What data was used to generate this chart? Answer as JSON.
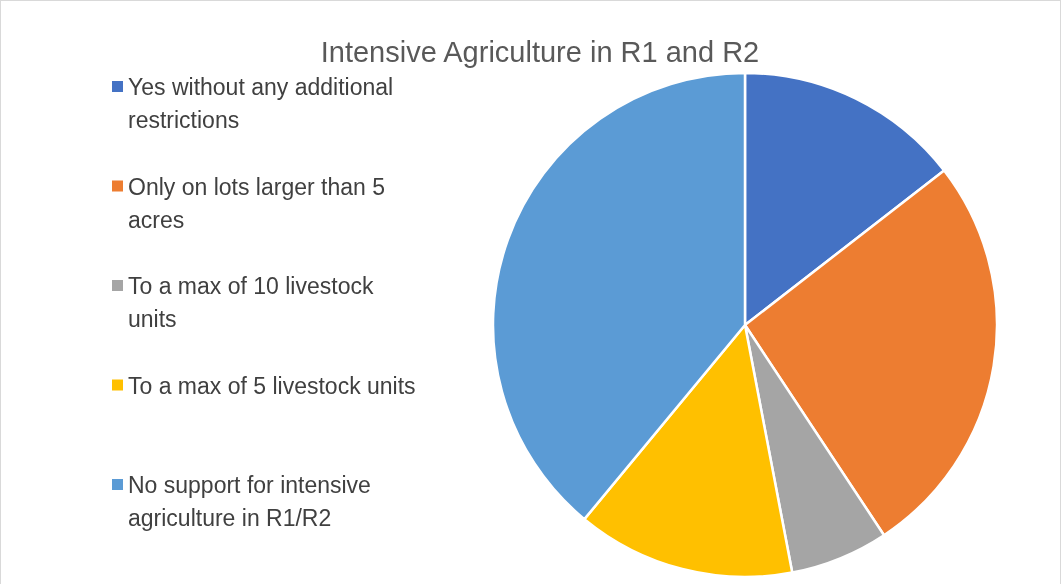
{
  "chart_data": {
    "type": "pie",
    "title": "Intensive Agriculture in R1 and R2",
    "categories": [
      "Yes without any additional restrictions",
      "Only on lots larger than 5 acres",
      "To a max of 10 livestock units",
      "To a max of 5 livestock units",
      "No support for intensive agriculture in R1/R2"
    ],
    "values": [
      14.5,
      26.2,
      6.3,
      14.0,
      39.0
    ],
    "colors": [
      "#4472c4",
      "#ed7d31",
      "#a5a5a5",
      "#ffc000",
      "#5b9bd5"
    ],
    "legend": "left"
  }
}
